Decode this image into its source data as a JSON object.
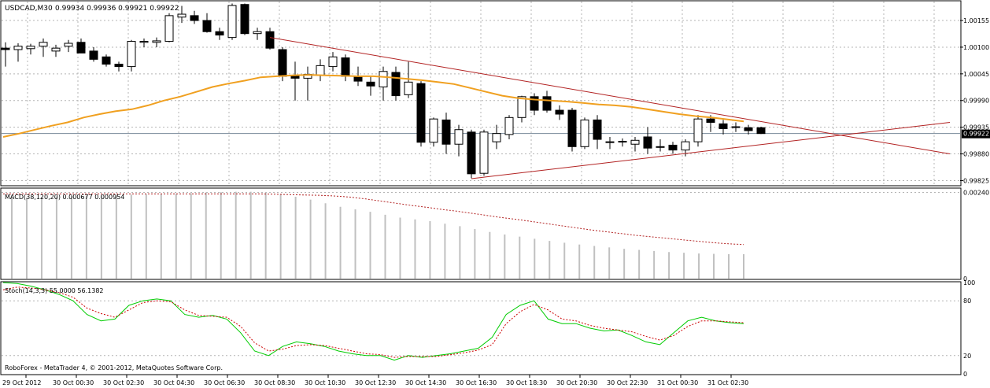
{
  "chart_data": {
    "type": "candlestick",
    "main": {
      "title_symbol": "USDCAD,M30",
      "title_values": "0.99934 0.99936 0.99921 0.99922",
      "current_price_label": "0.99922",
      "yticks": [
        1.00155,
        1.001,
        1.00045,
        0.9999,
        0.99935,
        0.9988,
        0.99825
      ],
      "ytick_labels": [
        "1.00155",
        "1.00100",
        "1.00045",
        "0.99990",
        "0.99935",
        "0.99880",
        "0.99825"
      ],
      "ylim": [
        0.99816,
        1.00194
      ],
      "candles": [
        [
          1.00098,
          1.0011,
          1.0006,
          1.00095
        ],
        [
          1.00095,
          1.00108,
          1.0007,
          1.00102
        ],
        [
          1.00097,
          1.00107,
          1.00085,
          1.00102
        ],
        [
          1.00102,
          1.00118,
          1.0008,
          1.0011
        ],
        [
          1.00092,
          1.00105,
          1.0008,
          1.00098
        ],
        [
          1.00102,
          1.00115,
          1.0009,
          1.00108
        ],
        [
          1.0011,
          1.00118,
          1.0009,
          1.00088
        ],
        [
          1.00092,
          1.001,
          1.0007,
          1.00075
        ],
        [
          1.0008,
          1.00085,
          1.0006,
          1.00065
        ],
        [
          1.00065,
          1.0007,
          1.0005,
          1.0006
        ],
        [
          1.0006,
          1.00115,
          1.0005,
          1.00112
        ],
        [
          1.0011,
          1.00118,
          1.001,
          1.00112
        ],
        [
          1.0011,
          1.0012,
          1.001,
          1.00113
        ],
        [
          1.00112,
          1.0017,
          1.0011,
          1.00165
        ],
        [
          1.00162,
          1.00185,
          1.0015,
          1.00168
        ],
        [
          1.00165,
          1.00175,
          1.00148,
          1.00155
        ],
        [
          1.00155,
          1.0017,
          1.0013,
          1.00132
        ],
        [
          1.00132,
          1.0014,
          1.00115,
          1.00125
        ],
        [
          1.0012,
          1.0019,
          1.00115,
          1.00186
        ],
        [
          1.00188,
          1.0019,
          1.00125,
          1.00128
        ],
        [
          1.00128,
          1.0014,
          1.00115,
          1.00132
        ],
        [
          1.00132,
          1.0014,
          1.00095,
          1.00098
        ],
        [
          1.00095,
          1.001,
          1.0003,
          1.0004
        ],
        [
          1.0004,
          1.0007,
          0.9999,
          1.00036
        ],
        [
          1.00036,
          1.0006,
          0.9999,
          1.00044
        ],
        [
          1.00042,
          1.00075,
          1.0003,
          1.00062
        ],
        [
          1.0006,
          1.0009,
          1.0005,
          1.0008
        ],
        [
          1.00078,
          1.00085,
          1.0003,
          1.0004
        ],
        [
          1.0004,
          1.0006,
          1.0002,
          1.0003
        ],
        [
          1.00028,
          1.0004,
          1.0,
          1.0002
        ],
        [
          1.00018,
          1.0006,
          0.9999,
          1.0005
        ],
        [
          1.00048,
          1.0006,
          0.9999,
          1.0
        ],
        [
          1.00002,
          1.0007,
          0.99995,
          1.00028
        ],
        [
          1.00025,
          1.0003,
          0.99895,
          0.99904
        ],
        [
          0.99904,
          0.99955,
          0.99895,
          0.99952
        ],
        [
          0.9995,
          0.99965,
          0.9988,
          0.999
        ],
        [
          0.999,
          0.9994,
          0.99875,
          0.9993
        ],
        [
          0.99925,
          0.9993,
          0.9983,
          0.99839
        ],
        [
          0.9984,
          0.9993,
          0.99835,
          0.99925
        ],
        [
          0.99905,
          0.9994,
          0.9989,
          0.99922
        ],
        [
          0.9992,
          0.9996,
          0.9991,
          0.99955
        ],
        [
          0.99955,
          1.0,
          0.99945,
          0.99998
        ],
        [
          0.99998,
          1.00005,
          0.9996,
          0.9997
        ],
        [
          0.99998,
          1.0001,
          0.99965,
          0.9997
        ],
        [
          0.9997,
          0.9998,
          0.9995,
          0.99962
        ],
        [
          0.9997,
          0.99975,
          0.99885,
          0.99895
        ],
        [
          0.99895,
          0.99955,
          0.9989,
          0.9995
        ],
        [
          0.9995,
          0.9996,
          0.9989,
          0.9991
        ],
        [
          0.99905,
          0.99915,
          0.9989,
          0.99905
        ],
        [
          0.99906,
          0.99912,
          0.99895,
          0.99906
        ],
        [
          0.999,
          0.99915,
          0.99885,
          0.99908
        ],
        [
          0.99915,
          0.99935,
          0.9988,
          0.99892
        ],
        [
          0.99895,
          0.9991,
          0.99885,
          0.99895
        ],
        [
          0.99898,
          0.99905,
          0.9988,
          0.99888
        ],
        [
          0.99888,
          0.9991,
          0.99875,
          0.99905
        ],
        [
          0.99905,
          0.9996,
          0.99895,
          0.99952
        ],
        [
          0.99952,
          0.9996,
          0.99925,
          0.99945
        ],
        [
          0.99942,
          0.9995,
          0.9992,
          0.99932
        ],
        [
          0.99935,
          0.99945,
          0.99925,
          0.99936
        ],
        [
          0.99934,
          0.9994,
          0.9992,
          0.99928
        ],
        [
          0.99934,
          0.99936,
          0.99921,
          0.99922
        ]
      ],
      "moving_average": [
        0.99915,
        0.99922,
        0.9993,
        0.99938,
        0.99945,
        0.99955,
        0.99962,
        0.99968,
        0.99972,
        0.9998,
        0.9999,
        0.99998,
        1.00008,
        1.00018,
        1.00025,
        1.00031,
        1.00038,
        1.0004,
        1.00042,
        1.00043,
        1.00042,
        1.00041,
        1.0004,
        1.0004,
        1.00038,
        1.00035,
        1.00032,
        1.00028,
        1.00024,
        1.00016,
        1.00008,
        1.0,
        0.99995,
        0.99992,
        0.9999,
        0.99988,
        0.99985,
        0.99982,
        0.9998,
        0.99977,
        0.99972,
        0.99967,
        0.99962,
        0.99958,
        0.99955,
        0.99951,
        0.99947
      ],
      "trendlines": [
        {
          "from": [
            21,
            1.0012
          ],
          "to": [
            75,
            0.9988
          ],
          "color": "#b22222"
        },
        {
          "from": [
            37,
            0.99829
          ],
          "to": [
            75,
            0.99945
          ],
          "color": "#b22222"
        }
      ]
    },
    "macd": {
      "label": "MACD(38,120,20) 0.000677 0.000954",
      "yticks": [
        0.0024,
        0
      ],
      "ytick_labels": [
        "0.00240",
        "0"
      ],
      "ylim": [
        0,
        0.0025
      ],
      "histogram": [
        0.00224,
        0.00226,
        0.00228,
        0.00229,
        0.0023,
        0.00231,
        0.00232,
        0.00233,
        0.00234,
        0.00235,
        0.00236,
        0.00237,
        0.00238,
        0.0024,
        0.00241,
        0.00242,
        0.00242,
        0.0024,
        0.00236,
        0.00228,
        0.0022,
        0.0021,
        0.002,
        0.00193,
        0.00186,
        0.00178,
        0.0017,
        0.00165,
        0.0016,
        0.00153,
        0.00146,
        0.00138,
        0.0013,
        0.00123,
        0.00117,
        0.00111,
        0.00105,
        0.001,
        0.00095,
        0.00091,
        0.00087,
        0.00083,
        0.0008,
        0.00077,
        0.00074,
        0.00072,
        0.0007,
        0.00069,
        0.00068,
        0.00068
      ],
      "signal": [
        0.00236,
        0.00236,
        0.00236,
        0.00236,
        0.00236,
        0.00236,
        0.00236,
        0.00236,
        0.00236,
        0.00236,
        0.00236,
        0.00236,
        0.00236,
        0.00236,
        0.00236,
        0.00236,
        0.00236,
        0.00236,
        0.00235,
        0.00234,
        0.00233,
        0.00232,
        0.0023,
        0.00227,
        0.00222,
        0.00216,
        0.0021,
        0.00204,
        0.00199,
        0.00193,
        0.00188,
        0.00182,
        0.00176,
        0.0017,
        0.00165,
        0.00159,
        0.00153,
        0.00147,
        0.00141,
        0.00135,
        0.0013,
        0.00125,
        0.0012,
        0.00116,
        0.00112,
        0.00108,
        0.00104,
        0.001,
        0.00097,
        0.00095
      ]
    },
    "stoch": {
      "label": "Stoch(14,3,3) 55.0000 56.1382",
      "yticks": [
        100,
        80,
        20,
        0
      ],
      "ytick_labels": [
        "100",
        "80",
        "20",
        "0"
      ],
      "ylim": [
        0,
        100
      ],
      "main_line": [
        100,
        99,
        96,
        92,
        87,
        80,
        65,
        58,
        60,
        75,
        80,
        82,
        80,
        65,
        62,
        64,
        60,
        45,
        25,
        20,
        30,
        35,
        33,
        30,
        25,
        22,
        20,
        20,
        15,
        20,
        18,
        20,
        22,
        25,
        28,
        40,
        65,
        75,
        80,
        60,
        55,
        55,
        50,
        47,
        48,
        42,
        35,
        32,
        45,
        58,
        62,
        58,
        56,
        55
      ],
      "signal_line": [
        92,
        95,
        94,
        92,
        89,
        84,
        72,
        66,
        62,
        70,
        78,
        80,
        79,
        70,
        64,
        63,
        62,
        52,
        34,
        25,
        27,
        31,
        32,
        31,
        28,
        25,
        22,
        21,
        18,
        19,
        19,
        19,
        21,
        23,
        26,
        32,
        55,
        68,
        76,
        70,
        60,
        58,
        53,
        50,
        48,
        46,
        41,
        37,
        42,
        52,
        58,
        58,
        57,
        56
      ]
    },
    "xlabels": [
      "29 Oct 2012",
      "30 Oct 00:30",
      "30 Oct 02:30",
      "30 Oct 04:30",
      "30 Oct 06:30",
      "30 Oct 08:30",
      "30 Oct 10:30",
      "30 Oct 12:30",
      "30 Oct 14:30",
      "30 Oct 16:30",
      "30 Oct 18:30",
      "30 Oct 20:30",
      "30 Oct 22:30",
      "31 Oct 00:30",
      "31 Oct 02:30"
    ],
    "copyright": "RoboForex - MetaTrader 4, © 2001-2012, MetaQuotes Software Corp."
  }
}
